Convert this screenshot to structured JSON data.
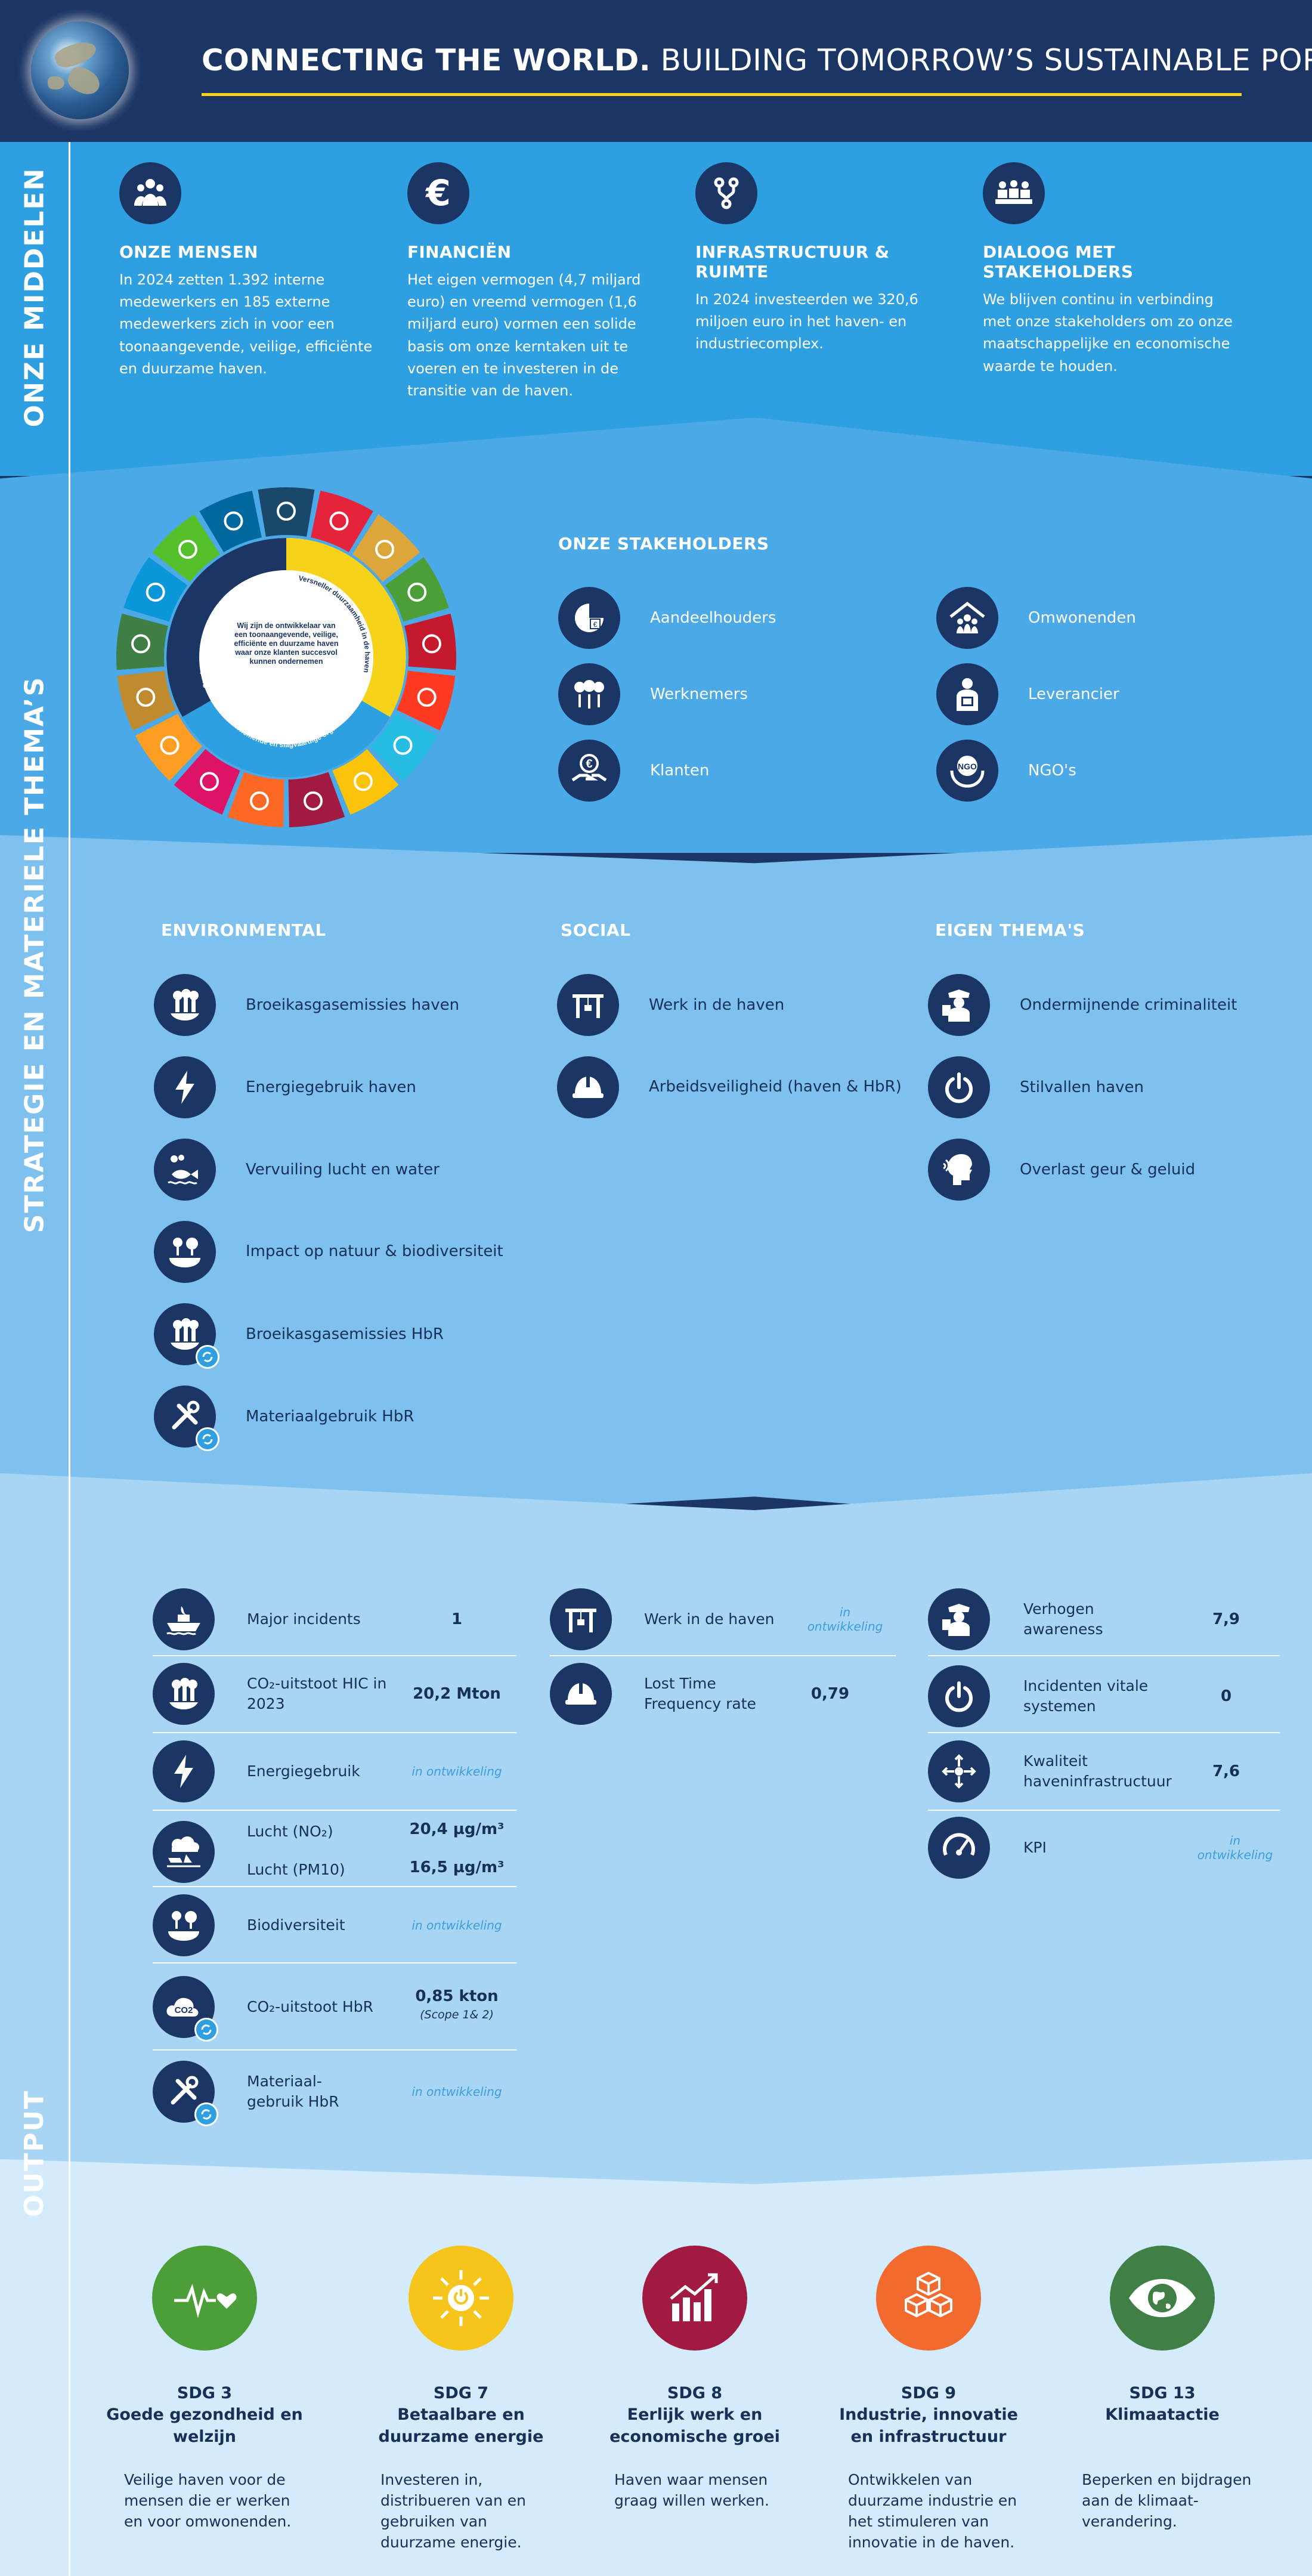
{
  "header": {
    "title_bold": "CONNECTING THE WORLD.",
    "title_rest": " BUILDING TOMORROW’S SUSTAINABLE PORT."
  },
  "sections": {
    "middelen": "ONZE MIDDELEN",
    "strategie": "STRATEGIE EN MATERIELE THEMA’S",
    "output": "OUTPUT"
  },
  "middelen": [
    {
      "icon": "people-icon",
      "title": "ONZE MENSEN",
      "text": "In 2024 zetten 1.392 interne medewerkers en 185 externe medewerkers zich in voor een toonaangevende, veilige, efficiënte en duurzame haven."
    },
    {
      "icon": "euro-icon",
      "title": "FINANCIËN",
      "text": "Het eigen vermogen (4,7 miljard euro) en vreemd vermogen (1,6 miljard euro) vormen een solide basis om onze kerntaken uit te voeren en te investeren in de transitie van de haven."
    },
    {
      "icon": "branch-route-icon",
      "title": "INFRASTRUCTUUR & RUIMTE",
      "text": "In 2024 investeerden we 320,6 miljoen euro in het haven- en industriecomplex."
    },
    {
      "icon": "meeting-table-icon",
      "title": "DIALOOG MET STAKEHOLDERS",
      "text": "We blijven continu in verbinding met onze stakeholders om zo onze maatschappelijke en economische waarde te houden."
    }
  ],
  "wheel": {
    "center": "Wij zijn de ontwikkelaar van een toonaangevende, veilige, efficiënte en duurzame haven waar onze klanten succesvol kunnen ondernemen",
    "ring": [
      "Versneller duurzaamheid in de haven",
      "Ondernemende en slagvaardige organisatie",
      "Sterke partner logistieke keten"
    ],
    "colors": {
      "blue": "#1b3564",
      "yellow": "#f6d21a",
      "sky": "#2e9fe0"
    }
  },
  "stakeholders": {
    "title": "ONZE STAKEHOLDERS",
    "items": [
      {
        "icon": "shareholder-icon",
        "label": "Aandeelhouders"
      },
      {
        "icon": "employees-icon",
        "label": "Werknemers"
      },
      {
        "icon": "customers-icon",
        "label": "Klanten"
      },
      {
        "icon": "residents-icon",
        "label": "Omwonenden"
      },
      {
        "icon": "supplier-icon",
        "label": "Leverancier"
      },
      {
        "icon": "ngo-icon",
        "label": "NGO's"
      }
    ]
  },
  "themes": {
    "environmental_title": "ENVIRONMENTAL",
    "social_title": "SOCIAL",
    "eigen_title": "EIGEN THEMA'S",
    "environmental": [
      {
        "icon": "factory-emissions-icon",
        "label": "Broeikasgasemissies haven"
      },
      {
        "icon": "lightning-icon",
        "label": "Energiegebruik haven"
      },
      {
        "icon": "pollution-fish-icon",
        "label": "Vervuiling lucht en water"
      },
      {
        "icon": "nature-icon",
        "label": "Impact op natuur & biodiversiteit"
      },
      {
        "icon": "factory-emissions-icon",
        "label": "Broeikasgasemissies HbR"
      },
      {
        "icon": "tools-icon",
        "label": "Materiaalgebruik HbR"
      }
    ],
    "social": [
      {
        "icon": "crane-icon",
        "label": "Werk in de haven"
      },
      {
        "icon": "helmet-icon",
        "label": "Arbeidsveiligheid (haven & HbR)"
      }
    ],
    "eigen": [
      {
        "icon": "inspector-icon",
        "label": "Ondermijnende criminaliteit"
      },
      {
        "icon": "power-icon",
        "label": "Stilvallen haven"
      },
      {
        "icon": "smell-noise-icon",
        "label": "Overlast geur & geluid"
      }
    ]
  },
  "output": {
    "in_dev": "in ontwikkeling",
    "col1": [
      {
        "icon": "ship-fire-icon",
        "label": "Major incidents",
        "value": "1"
      },
      {
        "icon": "factory-emissions-icon",
        "label": "CO₂-uitstoot HIC in 2023",
        "value": "20,2 Mton"
      },
      {
        "icon": "lightning-icon",
        "label": "Energiegebruik",
        "value": ""
      },
      {
        "icon": "air-quality-icon",
        "label": "Lucht (NO₂)",
        "value": "20,4 µg/m³",
        "label2": "Lucht (PM10)",
        "value2": "16,5 µg/m³"
      },
      {
        "icon": "nature-icon",
        "label": "Biodiversiteit",
        "value": ""
      },
      {
        "icon": "co2-icon",
        "label": "CO₂-uitstoot HbR",
        "value": "0,85 kton",
        "sub": "(Scope 1& 2)"
      },
      {
        "icon": "tools-icon",
        "label": "Materiaal-gebruik HbR",
        "value": ""
      }
    ],
    "col2": [
      {
        "icon": "crane-icon",
        "label": "Werk in de haven",
        "value": ""
      },
      {
        "icon": "helmet-icon",
        "label": "Lost Time Frequency rate",
        "value": "0,79"
      }
    ],
    "col3": [
      {
        "icon": "inspector-icon",
        "label": "Verhogen awareness",
        "value": "7,9"
      },
      {
        "icon": "power-icon",
        "label": "Incidenten vitale systemen",
        "value": "0"
      },
      {
        "icon": "arrows-icon",
        "label": "Kwaliteit haveninfrastructuur",
        "value": "7,6"
      },
      {
        "icon": "gauge-icon",
        "label": "KPI",
        "value": ""
      }
    ]
  },
  "sdgs": [
    {
      "icon": "heartbeat-icon",
      "color": "#4c9f38",
      "num": "SDG 3",
      "name": "Goede gezondheid en welzijn",
      "text": "Veilige haven voor de mensen die er werken en voor omwonenden."
    },
    {
      "icon": "sun-power-icon",
      "color": "#f6c51b",
      "num": "SDG 7",
      "name": "Betaalbare en duurzame energie",
      "text": "Investeren in, distribueren van en gebruiken van duurzame energie."
    },
    {
      "icon": "growth-chart-icon",
      "color": "#a21942",
      "num": "SDG 8",
      "name": "Eerlijk werk en economische groei",
      "text": "Haven waar mensen graag willen werken."
    },
    {
      "icon": "cubes-icon",
      "color": "#f26a2e",
      "num": "SDG 9",
      "name": "Industrie, innovatie en infrastructuur",
      "text": "Ontwikkelen van duurzame industrie en het stimuleren van innovatie in de haven."
    },
    {
      "icon": "eye-globe-icon",
      "color": "#407f46",
      "num": "SDG 13",
      "name": "Klimaatactie",
      "text": "Beperken en bijdragen aan de klimaat-verandering."
    }
  ]
}
